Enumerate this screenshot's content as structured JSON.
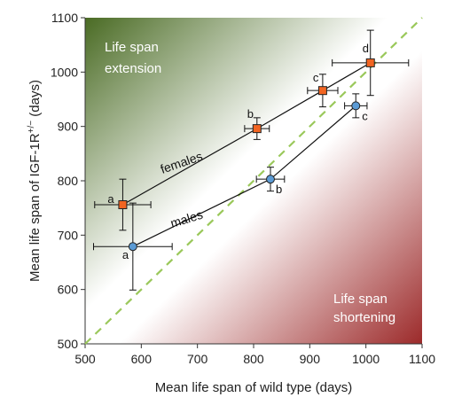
{
  "chart_data": {
    "type": "scatter",
    "xlabel": "Mean life span of wild type (days)",
    "ylabel_main": "Mean life span of IGF-1R",
    "ylabel_sup": "+/−",
    "ylabel_tail": " (days)",
    "xlim": [
      500,
      1100
    ],
    "ylim": [
      500,
      1100
    ],
    "xticks": [
      "500",
      "600",
      "700",
      "800",
      "900",
      "1000",
      "1100"
    ],
    "yticks": [
      "500",
      "600",
      "700",
      "800",
      "900",
      "1000",
      "1100"
    ],
    "regions": {
      "upper": [
        "Life span",
        "extension"
      ],
      "lower": [
        "Life span",
        "shortening"
      ]
    },
    "diagonal": {
      "x": [
        500,
        1100
      ],
      "y": [
        500,
        1100
      ],
      "style": "dashed",
      "color": "#9ac85a"
    },
    "series": [
      {
        "name": "females",
        "color": "#f26522",
        "marker": "square",
        "points": [
          {
            "x": 567,
            "y": 756,
            "xerr": 50,
            "yerr": 47,
            "label": "a"
          },
          {
            "x": 806,
            "y": 896,
            "xerr": 22,
            "yerr": 20,
            "label": "b"
          },
          {
            "x": 923,
            "y": 966,
            "xerr": 27,
            "yerr": 30,
            "label": "c"
          },
          {
            "x": 1008,
            "y": 1017,
            "xerr": 68,
            "yerr": 60,
            "label": "d"
          }
        ]
      },
      {
        "name": "males",
        "color": "#5b9bd5",
        "marker": "circle",
        "points": [
          {
            "x": 585,
            "y": 679,
            "xerr": 70,
            "yerr": 80,
            "label": "a"
          },
          {
            "x": 830,
            "y": 803,
            "xerr": 25,
            "yerr": 22,
            "label": "b"
          },
          {
            "x": 982,
            "y": 938,
            "xerr": 20,
            "yerr": 22,
            "label": "c"
          }
        ]
      }
    ]
  }
}
